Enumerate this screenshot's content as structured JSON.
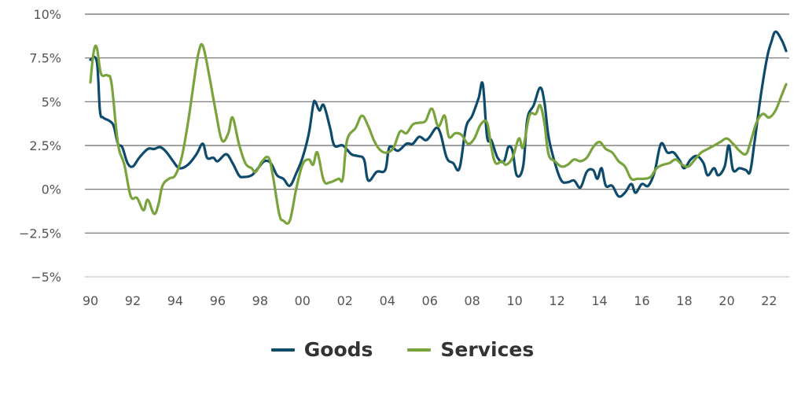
{
  "chart_data": {
    "type": "line",
    "ylim": [
      -5,
      10
    ],
    "xlim": [
      1990,
      2022.8
    ],
    "y_ticks": [
      {
        "value": 10,
        "label": "10%"
      },
      {
        "value": 7.5,
        "label": "7.5%"
      },
      {
        "value": 5,
        "label": "5%"
      },
      {
        "value": 2.5,
        "label": "2.5%"
      },
      {
        "value": 0,
        "label": "0%"
      },
      {
        "value": -2.5,
        "label": "−2.5%"
      },
      {
        "value": -5,
        "label": "−5%"
      }
    ],
    "x_ticks": [
      {
        "value": 1990,
        "label": "90"
      },
      {
        "value": 1992,
        "label": "92"
      },
      {
        "value": 1994,
        "label": "94"
      },
      {
        "value": 1996,
        "label": "96"
      },
      {
        "value": 1998,
        "label": "98"
      },
      {
        "value": 2000,
        "label": "00"
      },
      {
        "value": 2002,
        "label": "02"
      },
      {
        "value": 2004,
        "label": "04"
      },
      {
        "value": 2006,
        "label": "06"
      },
      {
        "value": 2008,
        "label": "08"
      },
      {
        "value": 2010,
        "label": "10"
      },
      {
        "value": 2012,
        "label": "12"
      },
      {
        "value": 2014,
        "label": "14"
      },
      {
        "value": 2016,
        "label": "16"
      },
      {
        "value": 2018,
        "label": "18"
      },
      {
        "value": 2020,
        "label": "20"
      },
      {
        "value": 2022,
        "label": "22"
      }
    ],
    "grid": true,
    "legend_position": "bottom-center",
    "series": [
      {
        "name": "Goods",
        "color": "#0d4a6b",
        "points": [
          [
            1990.0,
            7.4
          ],
          [
            1990.3,
            7.3
          ],
          [
            1990.45,
            4.5
          ],
          [
            1990.6,
            4.1
          ],
          [
            1990.9,
            3.9
          ],
          [
            1991.1,
            3.6
          ],
          [
            1991.3,
            2.6
          ],
          [
            1991.5,
            2.4
          ],
          [
            1991.75,
            1.5
          ],
          [
            1992.0,
            1.3
          ],
          [
            1992.3,
            1.8
          ],
          [
            1992.7,
            2.3
          ],
          [
            1993.0,
            2.3
          ],
          [
            1993.3,
            2.4
          ],
          [
            1993.6,
            2.1
          ],
          [
            1993.9,
            1.6
          ],
          [
            1994.2,
            1.2
          ],
          [
            1994.6,
            1.4
          ],
          [
            1995.0,
            2.0
          ],
          [
            1995.3,
            2.6
          ],
          [
            1995.5,
            1.8
          ],
          [
            1995.8,
            1.8
          ],
          [
            1996.0,
            1.6
          ],
          [
            1996.4,
            2.0
          ],
          [
            1996.7,
            1.5
          ],
          [
            1997.0,
            0.8
          ],
          [
            1997.2,
            0.7
          ],
          [
            1997.6,
            0.8
          ],
          [
            1997.9,
            1.2
          ],
          [
            1998.2,
            1.6
          ],
          [
            1998.5,
            1.5
          ],
          [
            1998.8,
            0.8
          ],
          [
            1999.1,
            0.6
          ],
          [
            1999.4,
            0.2
          ],
          [
            1999.7,
            0.9
          ],
          [
            2000.0,
            1.8
          ],
          [
            2000.3,
            3.2
          ],
          [
            2000.5,
            4.8
          ],
          [
            2000.6,
            5.0
          ],
          [
            2000.8,
            4.5
          ],
          [
            2001.0,
            4.8
          ],
          [
            2001.3,
            3.5
          ],
          [
            2001.5,
            2.5
          ],
          [
            2001.9,
            2.5
          ],
          [
            2002.3,
            2.0
          ],
          [
            2002.6,
            1.9
          ],
          [
            2002.9,
            1.7
          ],
          [
            2003.1,
            0.5
          ],
          [
            2003.5,
            1.0
          ],
          [
            2003.9,
            1.1
          ],
          [
            2004.1,
            2.4
          ],
          [
            2004.5,
            2.2
          ],
          [
            2004.9,
            2.6
          ],
          [
            2005.2,
            2.6
          ],
          [
            2005.5,
            3.0
          ],
          [
            2005.8,
            2.8
          ],
          [
            2006.0,
            3.0
          ],
          [
            2006.3,
            3.5
          ],
          [
            2006.5,
            3.2
          ],
          [
            2006.8,
            1.8
          ],
          [
            2007.1,
            1.5
          ],
          [
            2007.4,
            1.2
          ],
          [
            2007.7,
            3.5
          ],
          [
            2008.0,
            4.2
          ],
          [
            2008.3,
            5.2
          ],
          [
            2008.5,
            6.0
          ],
          [
            2008.7,
            3.0
          ],
          [
            2008.9,
            2.8
          ],
          [
            2009.2,
            1.8
          ],
          [
            2009.5,
            1.6
          ],
          [
            2009.7,
            2.4
          ],
          [
            2009.9,
            2.2
          ],
          [
            2010.1,
            0.8
          ],
          [
            2010.4,
            1.3
          ],
          [
            2010.6,
            4.0
          ],
          [
            2010.9,
            4.8
          ],
          [
            2011.2,
            5.8
          ],
          [
            2011.4,
            5.0
          ],
          [
            2011.6,
            3.0
          ],
          [
            2011.9,
            1.5
          ],
          [
            2012.2,
            0.5
          ],
          [
            2012.5,
            0.4
          ],
          [
            2012.8,
            0.5
          ],
          [
            2013.1,
            0.1
          ],
          [
            2013.4,
            1.0
          ],
          [
            2013.7,
            1.1
          ],
          [
            2013.9,
            0.6
          ],
          [
            2014.1,
            1.2
          ],
          [
            2014.3,
            0.2
          ],
          [
            2014.6,
            0.2
          ],
          [
            2014.9,
            -0.4
          ],
          [
            2015.2,
            -0.2
          ],
          [
            2015.5,
            0.3
          ],
          [
            2015.7,
            -0.2
          ],
          [
            2016.0,
            0.3
          ],
          [
            2016.3,
            0.2
          ],
          [
            2016.6,
            1.0
          ],
          [
            2016.9,
            2.6
          ],
          [
            2017.2,
            2.1
          ],
          [
            2017.5,
            2.1
          ],
          [
            2017.8,
            1.6
          ],
          [
            2018.0,
            1.2
          ],
          [
            2018.3,
            1.7
          ],
          [
            2018.6,
            1.9
          ],
          [
            2018.9,
            1.5
          ],
          [
            2019.1,
            0.8
          ],
          [
            2019.4,
            1.2
          ],
          [
            2019.6,
            0.8
          ],
          [
            2019.9,
            1.3
          ],
          [
            2020.1,
            2.5
          ],
          [
            2020.3,
            1.1
          ],
          [
            2020.6,
            1.2
          ],
          [
            2020.9,
            1.1
          ],
          [
            2021.1,
            1.0
          ],
          [
            2021.3,
            2.6
          ],
          [
            2021.6,
            5.3
          ],
          [
            2021.9,
            7.5
          ],
          [
            2022.1,
            8.4
          ],
          [
            2022.3,
            9.0
          ],
          [
            2022.6,
            8.5
          ],
          [
            2022.8,
            7.9
          ]
        ]
      },
      {
        "name": "Services",
        "color": "#79a33d",
        "points": [
          [
            1990.0,
            6.1
          ],
          [
            1990.15,
            7.8
          ],
          [
            1990.3,
            8.1
          ],
          [
            1990.5,
            6.6
          ],
          [
            1990.8,
            6.5
          ],
          [
            1991.0,
            6.0
          ],
          [
            1991.3,
            2.6
          ],
          [
            1991.6,
            1.4
          ],
          [
            1991.9,
            -0.4
          ],
          [
            1992.2,
            -0.5
          ],
          [
            1992.5,
            -1.2
          ],
          [
            1992.7,
            -0.6
          ],
          [
            1993.0,
            -1.4
          ],
          [
            1993.2,
            -0.9
          ],
          [
            1993.4,
            0.2
          ],
          [
            1993.7,
            0.6
          ],
          [
            1994.0,
            0.8
          ],
          [
            1994.3,
            1.8
          ],
          [
            1994.6,
            3.8
          ],
          [
            1994.9,
            6.3
          ],
          [
            1995.1,
            7.8
          ],
          [
            1995.3,
            8.2
          ],
          [
            1995.6,
            6.5
          ],
          [
            1995.9,
            4.5
          ],
          [
            1996.2,
            2.8
          ],
          [
            1996.5,
            3.2
          ],
          [
            1996.7,
            4.1
          ],
          [
            1997.0,
            2.6
          ],
          [
            1997.3,
            1.5
          ],
          [
            1997.6,
            1.2
          ],
          [
            1997.8,
            1.0
          ],
          [
            1998.1,
            1.6
          ],
          [
            1998.4,
            1.8
          ],
          [
            1998.6,
            0.8
          ],
          [
            1998.9,
            -1.4
          ],
          [
            1999.1,
            -1.8
          ],
          [
            1999.4,
            -1.8
          ],
          [
            1999.7,
            0.0
          ],
          [
            2000.0,
            1.4
          ],
          [
            2000.3,
            1.7
          ],
          [
            2000.5,
            1.4
          ],
          [
            2000.7,
            2.1
          ],
          [
            2001.0,
            0.5
          ],
          [
            2001.3,
            0.4
          ],
          [
            2001.7,
            0.6
          ],
          [
            2001.9,
            0.6
          ],
          [
            2002.1,
            2.8
          ],
          [
            2002.5,
            3.5
          ],
          [
            2002.8,
            4.2
          ],
          [
            2003.1,
            3.6
          ],
          [
            2003.4,
            2.7
          ],
          [
            2003.7,
            2.2
          ],
          [
            2004.0,
            2.1
          ],
          [
            2004.3,
            2.4
          ],
          [
            2004.6,
            3.3
          ],
          [
            2004.9,
            3.2
          ],
          [
            2005.2,
            3.7
          ],
          [
            2005.5,
            3.8
          ],
          [
            2005.8,
            3.9
          ],
          [
            2006.1,
            4.6
          ],
          [
            2006.4,
            3.6
          ],
          [
            2006.7,
            4.2
          ],
          [
            2006.9,
            3.0
          ],
          [
            2007.2,
            3.2
          ],
          [
            2007.5,
            3.1
          ],
          [
            2007.8,
            2.6
          ],
          [
            2008.1,
            2.9
          ],
          [
            2008.4,
            3.7
          ],
          [
            2008.7,
            3.8
          ],
          [
            2008.9,
            2.4
          ],
          [
            2009.1,
            1.5
          ],
          [
            2009.4,
            1.6
          ],
          [
            2009.6,
            1.4
          ],
          [
            2009.9,
            1.8
          ],
          [
            2010.2,
            2.9
          ],
          [
            2010.4,
            2.4
          ],
          [
            2010.7,
            4.2
          ],
          [
            2011.0,
            4.3
          ],
          [
            2011.2,
            4.8
          ],
          [
            2011.4,
            3.8
          ],
          [
            2011.6,
            2.0
          ],
          [
            2011.9,
            1.6
          ],
          [
            2012.2,
            1.3
          ],
          [
            2012.5,
            1.4
          ],
          [
            2012.8,
            1.7
          ],
          [
            2013.1,
            1.6
          ],
          [
            2013.4,
            1.8
          ],
          [
            2013.7,
            2.4
          ],
          [
            2014.0,
            2.7
          ],
          [
            2014.3,
            2.3
          ],
          [
            2014.6,
            2.1
          ],
          [
            2014.9,
            1.6
          ],
          [
            2015.2,
            1.3
          ],
          [
            2015.5,
            0.6
          ],
          [
            2015.8,
            0.6
          ],
          [
            2016.1,
            0.6
          ],
          [
            2016.4,
            0.7
          ],
          [
            2016.7,
            1.2
          ],
          [
            2017.0,
            1.4
          ],
          [
            2017.3,
            1.5
          ],
          [
            2017.6,
            1.7
          ],
          [
            2017.9,
            1.4
          ],
          [
            2018.2,
            1.3
          ],
          [
            2018.5,
            1.7
          ],
          [
            2018.8,
            2.1
          ],
          [
            2019.1,
            2.3
          ],
          [
            2019.4,
            2.5
          ],
          [
            2019.7,
            2.7
          ],
          [
            2020.0,
            2.9
          ],
          [
            2020.3,
            2.6
          ],
          [
            2020.6,
            2.2
          ],
          [
            2020.9,
            2.0
          ],
          [
            2021.1,
            2.6
          ],
          [
            2021.4,
            3.8
          ],
          [
            2021.7,
            4.3
          ],
          [
            2022.0,
            4.1
          ],
          [
            2022.3,
            4.5
          ],
          [
            2022.6,
            5.4
          ],
          [
            2022.8,
            6.0
          ]
        ]
      }
    ]
  }
}
